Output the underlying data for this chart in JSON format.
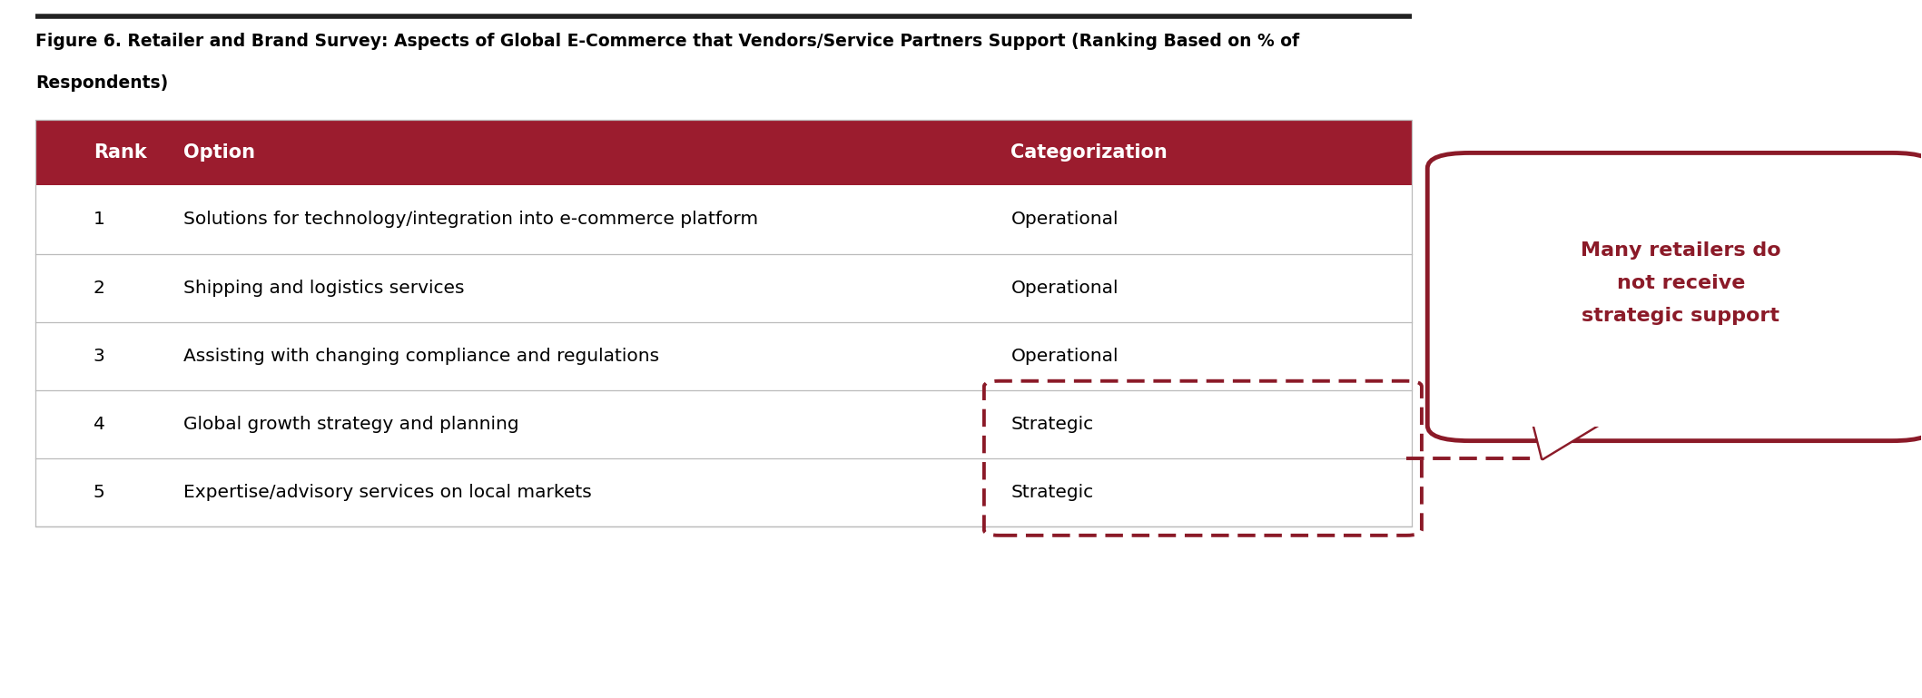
{
  "title_line1": "Figure 6. Retailer and Brand Survey: Aspects of Global E-Commerce that Vendors/Service Partners Support (Ranking Based on % of",
  "title_line2": "Respondents)",
  "header": [
    "Rank",
    "Option",
    "Categorization"
  ],
  "rows": [
    [
      "1",
      "Solutions for technology/integration into e-commerce platform",
      "Operational"
    ],
    [
      "2",
      "Shipping and logistics services",
      "Operational"
    ],
    [
      "3",
      "Assisting with changing compliance and regulations",
      "Operational"
    ],
    [
      "4",
      "Global growth strategy and planning",
      "Strategic"
    ],
    [
      "5",
      "Expertise/advisory services on local markets",
      "Strategic"
    ]
  ],
  "header_bg_color": "#9B1C2E",
  "header_text_color": "#FFFFFF",
  "row_bg_color": "#FFFFFF",
  "row_text_color": "#000000",
  "table_line_color": "#BBBBBB",
  "dashed_box_color": "#8B1A28",
  "callout_text": "Many retailers do\nnot receive\nstrategic support",
  "callout_text_color": "#8B1A28",
  "callout_border_color": "#8B1A28",
  "callout_bg_color": "#FFFFFF",
  "top_border_color": "#222222",
  "title_fontsize": 13.5,
  "header_fontsize": 15,
  "row_fontsize": 14.5
}
